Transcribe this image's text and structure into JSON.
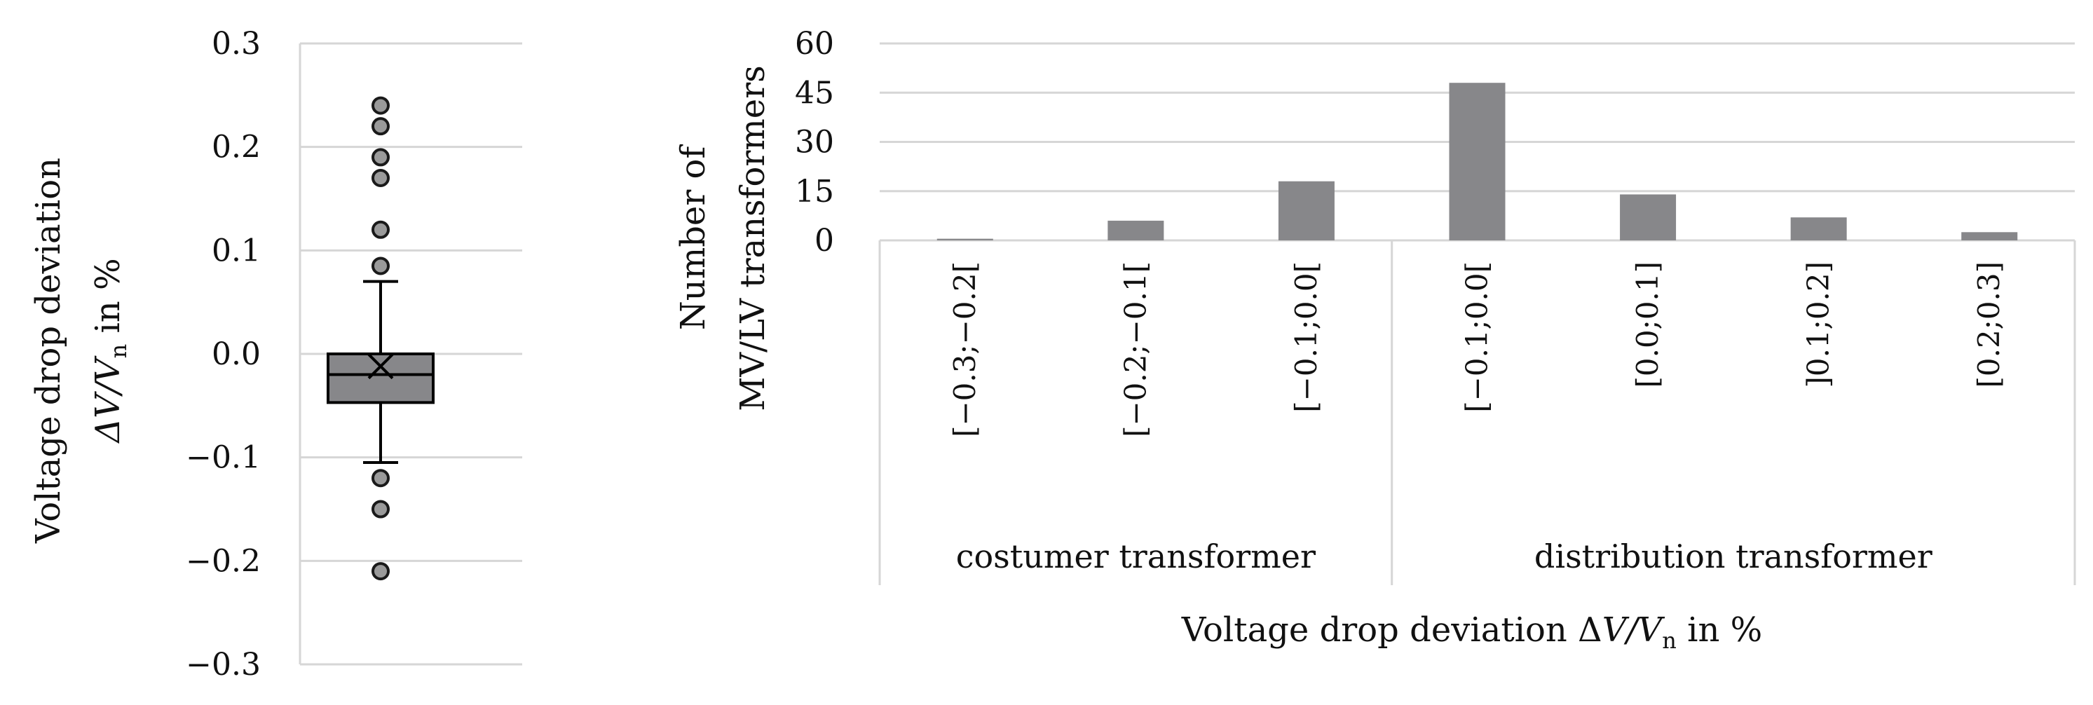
{
  "colors": {
    "bar_fill": "#87878a",
    "box_fill": "#87878a",
    "outlier_fill": "#9a9a9a",
    "gridline": "#d6d6d6",
    "text": "#111111"
  },
  "chart_data": [
    {
      "type": "box",
      "title": "",
      "ylabel_line1": "Voltage drop deviation",
      "ylabel_line2_prefix": "ΔV/V",
      "ylabel_line2_sub": "n",
      "ylabel_line2_suffix": " in %",
      "ylim": [
        -0.3,
        0.3
      ],
      "yticks": [
        0.3,
        0.2,
        0.1,
        0.0,
        -0.1,
        -0.2,
        -0.3
      ],
      "ytick_labels": [
        "0.3",
        "0.2",
        "0.1",
        "0.0",
        "−0.1",
        "−0.2",
        "−0.3"
      ],
      "whisker_high": 0.07,
      "q3": 0.0,
      "median": -0.02,
      "mean": -0.012,
      "q1": -0.047,
      "whisker_low": -0.105,
      "outliers": [
        0.24,
        0.22,
        0.19,
        0.17,
        0.12,
        0.085,
        -0.12,
        -0.15,
        -0.21
      ]
    },
    {
      "type": "bar",
      "title": "",
      "ylabel_line1": "Number of",
      "ylabel_line2": "MV/LV transformers",
      "xlabel_prefix": "Voltage drop deviation Δ",
      "xlabel_italic": "V/V",
      "xlabel_sub": "n",
      "xlabel_suffix": " in %",
      "ylim": [
        0,
        60
      ],
      "yticks": [
        0,
        15,
        30,
        45,
        60
      ],
      "ytick_labels": [
        "0",
        "15",
        "30",
        "45",
        "60"
      ],
      "categories": [
        "[−0.3;−0.2[",
        "[−0.2;−0.1[",
        "[−0.1;0.0[",
        "[−0.1;0.0[",
        "[0.0;0.1]",
        "]0.1;0.2]",
        "[0.2;0.3]"
      ],
      "values": [
        0.5,
        6,
        18,
        48,
        14,
        7,
        2.5
      ],
      "groups": [
        {
          "label": "costumer transformer",
          "count": 3
        },
        {
          "label": "distribution transformer",
          "count": 4
        }
      ]
    }
  ]
}
